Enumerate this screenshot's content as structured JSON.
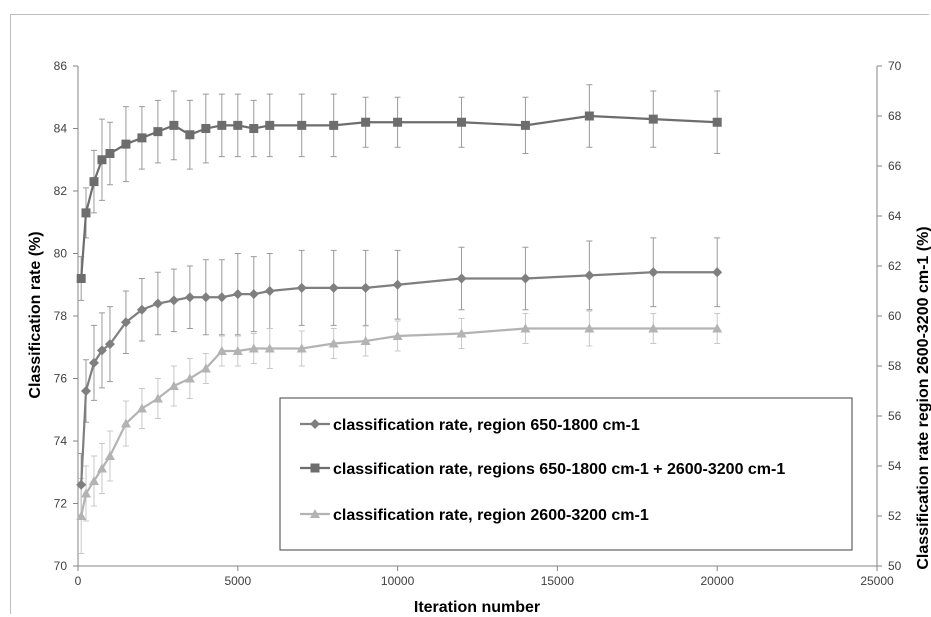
{
  "chart_data": {
    "type": "line",
    "xlabel": "Iteration number",
    "ylabel": "Classification rate (%)",
    "y2label": "Classification rate region 2600-3200 cm-1 (%)",
    "xlim": [
      0,
      25000
    ],
    "ylim": [
      70,
      86
    ],
    "y2lim": [
      50,
      70
    ],
    "x_ticks": [
      0,
      5000,
      10000,
      15000,
      20000,
      25000
    ],
    "y_ticks": [
      70,
      72,
      74,
      76,
      78,
      80,
      82,
      84,
      86
    ],
    "y2_ticks": [
      50,
      52,
      54,
      56,
      58,
      60,
      62,
      64,
      66,
      68,
      70
    ],
    "grid": false,
    "legend_position": "bottom-right",
    "x": [
      100,
      250,
      500,
      750,
      1000,
      1500,
      2000,
      2500,
      3000,
      3500,
      4000,
      4500,
      5000,
      5500,
      6000,
      7000,
      8000,
      9000,
      10000,
      12000,
      14000,
      16000,
      18000,
      20000
    ],
    "series": [
      {
        "name": "classification rate, region 650-1800 cm-1",
        "axis": "left",
        "marker": "diamond",
        "color": "#7f7f7f",
        "values": [
          72.6,
          75.6,
          76.5,
          76.9,
          77.1,
          77.8,
          78.2,
          78.4,
          78.5,
          78.6,
          78.6,
          78.6,
          78.7,
          78.7,
          78.8,
          78.9,
          78.9,
          78.9,
          79.0,
          79.2,
          79.2,
          79.3,
          79.4,
          79.4
        ],
        "errors": [
          1.0,
          1.0,
          1.2,
          1.2,
          1.2,
          1.0,
          1.0,
          1.0,
          1.0,
          1.0,
          1.2,
          1.2,
          1.3,
          1.2,
          1.2,
          1.2,
          1.2,
          1.2,
          1.1,
          1.0,
          1.0,
          1.1,
          1.1,
          1.1
        ]
      },
      {
        "name": "classification rate, regions 650-1800 cm-1 + 2600-3200 cm-1",
        "axis": "left",
        "marker": "square",
        "color": "#6d6d6d",
        "values": [
          79.2,
          81.3,
          82.3,
          83.0,
          83.2,
          83.5,
          83.7,
          83.9,
          84.1,
          83.8,
          84.0,
          84.1,
          84.1,
          84.0,
          84.1,
          84.1,
          84.1,
          84.2,
          84.2,
          84.2,
          84.1,
          84.4,
          84.3,
          84.2
        ],
        "errors": [
          0.7,
          0.8,
          1.0,
          1.3,
          1.0,
          1.2,
          1.0,
          1.0,
          1.1,
          1.1,
          1.1,
          1.0,
          1.0,
          0.9,
          1.0,
          1.0,
          1.0,
          0.8,
          0.8,
          0.8,
          0.9,
          1.0,
          0.9,
          1.0
        ]
      },
      {
        "name": "classification rate, region 2600-3200 cm-1",
        "axis": "right",
        "marker": "triangle",
        "color": "#b3b3b3",
        "values": [
          52.0,
          52.9,
          53.4,
          53.9,
          54.4,
          55.7,
          56.3,
          56.7,
          57.2,
          57.5,
          57.9,
          58.6,
          58.6,
          58.7,
          58.7,
          58.7,
          58.9,
          59.0,
          59.2,
          59.3,
          59.5,
          59.5,
          59.5,
          59.5
        ],
        "errors": [
          1.5,
          1.1,
          1.0,
          1.0,
          1.0,
          0.9,
          0.8,
          0.8,
          0.8,
          0.8,
          0.6,
          0.6,
          0.6,
          0.6,
          0.8,
          0.7,
          0.6,
          0.6,
          0.6,
          0.6,
          0.6,
          0.7,
          0.6,
          0.6
        ]
      }
    ]
  }
}
